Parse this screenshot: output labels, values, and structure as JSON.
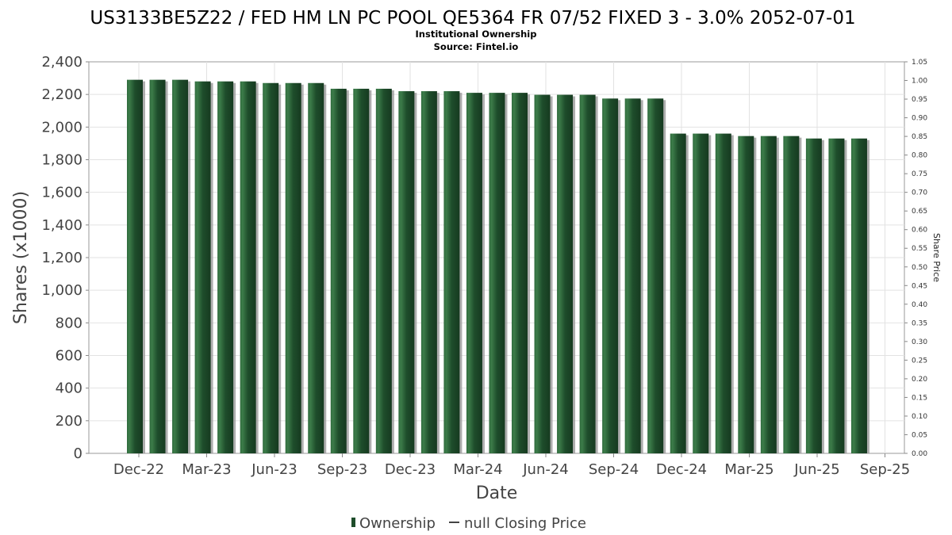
{
  "chart_data": {
    "type": "bar",
    "title": "US3133BE5Z22 / FED HM LN PC POOL QE5364 FR 07/52 FIXED 3 - 3.0% 2052-07-01",
    "subtitle": "Institutional Ownership",
    "source": "Source: Fintel.io",
    "xlabel": "Date",
    "ylabel": "Shares (x1000)",
    "y2label": "Share Price",
    "ylim": [
      0,
      2400
    ],
    "y2lim": [
      0,
      1.05
    ],
    "yticks": [
      "0",
      "200",
      "400",
      "600",
      "800",
      "1,000",
      "1,200",
      "1,400",
      "1,600",
      "1,800",
      "2,000",
      "2,200",
      "2,400"
    ],
    "y2ticks": [
      "0.00",
      "0.05",
      "0.10",
      "0.15",
      "0.20",
      "0.25",
      "0.30",
      "0.35",
      "0.40",
      "0.45",
      "0.50",
      "0.55",
      "0.60",
      "0.65",
      "0.70",
      "0.75",
      "0.80",
      "0.85",
      "0.90",
      "0.95",
      "1.00",
      "1.05"
    ],
    "xticks": [
      "Dec-22",
      "Mar-23",
      "Jun-23",
      "Sep-23",
      "Dec-23",
      "Mar-24",
      "Jun-24",
      "Sep-24",
      "Dec-24",
      "Mar-25",
      "Jun-25",
      "Sep-25"
    ],
    "grid": true,
    "legend_position": "bottom",
    "bar_color": "#1e4d2b",
    "series": [
      {
        "name": "Ownership",
        "values": [
          2290,
          2290,
          2290,
          2280,
          2280,
          2280,
          2270,
          2270,
          2270,
          2235,
          2235,
          2235,
          2220,
          2220,
          2220,
          2210,
          2210,
          2210,
          2198,
          2198,
          2198,
          2175,
          2175,
          2175,
          1960,
          1960,
          1960,
          1945,
          1945,
          1945,
          1930,
          1930,
          1930
        ]
      },
      {
        "name": "null Closing Price",
        "values": []
      }
    ]
  }
}
